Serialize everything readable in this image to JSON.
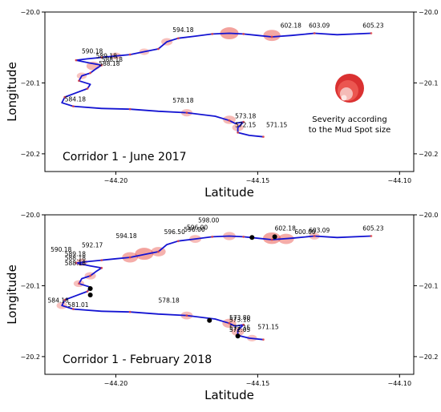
{
  "chart_data": [
    {
      "type": "line",
      "title": "",
      "annotation": "Corridor 1 -  June 2017",
      "xlabel": "Latitude",
      "ylabel": "Longitude",
      "xlim": [
        -44.225,
        -44.095
      ],
      "ylim": [
        -20.225,
        -20.0
      ],
      "xticks": [
        -44.2,
        -44.15,
        -44.1
      ],
      "xtick_labels": [
        "−44.20",
        "−44.15",
        "−44.10"
      ],
      "yticks": [
        -20.0,
        -20.1,
        -20.2
      ],
      "ytick_labels": [
        "−20.0",
        "−20.1",
        "−20.2"
      ],
      "grid": false,
      "legend": "Severity according to the Mud Spot size",
      "legend_lines": [
        "Severity according",
        "to the Mud Spot size"
      ],
      "route": [
        [
          -44.11,
          -20.03
        ],
        [
          -44.122,
          -20.032
        ],
        [
          -44.13,
          -20.03
        ],
        [
          -44.138,
          -20.033
        ],
        [
          -44.145,
          -20.035
        ],
        [
          -44.15,
          -20.033
        ],
        [
          -44.155,
          -20.031
        ],
        [
          -44.16,
          -20.03
        ],
        [
          -44.166,
          -20.031
        ],
        [
          -44.172,
          -20.034
        ],
        [
          -44.178,
          -20.037
        ],
        [
          -44.182,
          -20.042
        ],
        [
          -44.185,
          -20.052
        ],
        [
          -44.19,
          -20.056
        ],
        [
          -44.195,
          -20.06
        ],
        [
          -44.2,
          -20.062
        ],
        [
          -44.205,
          -20.064
        ],
        [
          -44.21,
          -20.066
        ],
        [
          -44.214,
          -20.068
        ],
        [
          -44.209,
          -20.072
        ],
        [
          -44.205,
          -20.075
        ],
        [
          -44.207,
          -20.08
        ],
        [
          -44.209,
          -20.086
        ],
        [
          -44.212,
          -20.09
        ],
        [
          -44.213,
          -20.097
        ],
        [
          -44.209,
          -20.102
        ],
        [
          -44.21,
          -20.108
        ],
        [
          -44.214,
          -20.114
        ],
        [
          -44.218,
          -20.12
        ],
        [
          -44.219,
          -20.128
        ],
        [
          -44.215,
          -20.133
        ],
        [
          -44.205,
          -20.136
        ],
        [
          -44.195,
          -20.137
        ],
        [
          -44.185,
          -20.14
        ],
        [
          -44.175,
          -20.142
        ],
        [
          -44.165,
          -20.147
        ],
        [
          -44.16,
          -20.153
        ],
        [
          -44.158,
          -20.157
        ],
        [
          -44.155,
          -20.155
        ],
        [
          -44.157,
          -20.163
        ],
        [
          -44.157,
          -20.17
        ],
        [
          -44.153,
          -20.174
        ],
        [
          -44.148,
          -20.176
        ]
      ],
      "points": [
        {
          "label": "605.23",
          "x": -44.113,
          "y": -20.022
        },
        {
          "label": "603.09",
          "x": -44.132,
          "y": -20.022
        },
        {
          "label": "602.18",
          "x": -44.142,
          "y": -20.022
        },
        {
          "label": "594.18",
          "x": -44.18,
          "y": -20.028
        },
        {
          "label": "590.18",
          "x": -44.212,
          "y": -20.058
        },
        {
          "label": "589.18",
          "x": -44.207,
          "y": -20.065
        },
        {
          "label": "588.18",
          "x": -44.205,
          "y": -20.07
        },
        {
          "label": "588.18",
          "x": -44.206,
          "y": -20.076
        },
        {
          "label": "584.18",
          "x": -44.218,
          "y": -20.126
        },
        {
          "label": "578.18",
          "x": -44.18,
          "y": -20.128
        },
        {
          "label": "573.18",
          "x": -44.158,
          "y": -20.15
        },
        {
          "label": "572.15",
          "x": -44.158,
          "y": -20.162
        },
        {
          "label": "571.15",
          "x": -44.147,
          "y": -20.162
        }
      ],
      "spots": [
        {
          "x": -44.16,
          "y": -20.03,
          "size": 1.0
        },
        {
          "x": -44.145,
          "y": -20.033,
          "size": 0.9
        },
        {
          "x": -44.208,
          "y": -20.076,
          "size": 0.6
        },
        {
          "x": -44.182,
          "y": -20.042,
          "size": 0.45
        },
        {
          "x": -44.175,
          "y": -20.142,
          "size": 0.45
        },
        {
          "x": -44.16,
          "y": -20.152,
          "size": 0.55
        },
        {
          "x": -44.157,
          "y": -20.163,
          "size": 0.45
        },
        {
          "x": -44.2,
          "y": -20.062,
          "size": 0.4
        },
        {
          "x": -44.212,
          "y": -20.09,
          "size": 0.35
        },
        {
          "x": -44.19,
          "y": -20.056,
          "size": 0.35
        }
      ],
      "events": []
    },
    {
      "type": "line",
      "title": "",
      "annotation": "Corridor 1 - February 2018",
      "xlabel": "Latitude",
      "ylabel": "Longitude",
      "xlim": [
        -44.225,
        -44.095
      ],
      "ylim": [
        -20.225,
        -20.0
      ],
      "xticks": [
        -44.2,
        -44.15,
        -44.1
      ],
      "xtick_labels": [
        "−44.20",
        "−44.15",
        "−44.10"
      ],
      "yticks": [
        -20.0,
        -20.1,
        -20.2
      ],
      "ytick_labels": [
        "−20.0",
        "−20.1",
        "−20.2"
      ],
      "grid": false,
      "route": [
        [
          -44.11,
          -20.03
        ],
        [
          -44.122,
          -20.032
        ],
        [
          -44.13,
          -20.03
        ],
        [
          -44.138,
          -20.033
        ],
        [
          -44.145,
          -20.035
        ],
        [
          -44.15,
          -20.033
        ],
        [
          -44.155,
          -20.031
        ],
        [
          -44.16,
          -20.03
        ],
        [
          -44.166,
          -20.031
        ],
        [
          -44.172,
          -20.034
        ],
        [
          -44.178,
          -20.037
        ],
        [
          -44.182,
          -20.042
        ],
        [
          -44.185,
          -20.052
        ],
        [
          -44.19,
          -20.056
        ],
        [
          -44.195,
          -20.06
        ],
        [
          -44.2,
          -20.062
        ],
        [
          -44.205,
          -20.064
        ],
        [
          -44.21,
          -20.066
        ],
        [
          -44.214,
          -20.068
        ],
        [
          -44.209,
          -20.072
        ],
        [
          -44.205,
          -20.075
        ],
        [
          -44.207,
          -20.08
        ],
        [
          -44.209,
          -20.086
        ],
        [
          -44.212,
          -20.09
        ],
        [
          -44.213,
          -20.097
        ],
        [
          -44.209,
          -20.102
        ],
        [
          -44.21,
          -20.108
        ],
        [
          -44.214,
          -20.114
        ],
        [
          -44.218,
          -20.12
        ],
        [
          -44.219,
          -20.128
        ],
        [
          -44.215,
          -20.133
        ],
        [
          -44.205,
          -20.136
        ],
        [
          -44.195,
          -20.137
        ],
        [
          -44.185,
          -20.14
        ],
        [
          -44.175,
          -20.142
        ],
        [
          -44.165,
          -20.147
        ],
        [
          -44.16,
          -20.153
        ],
        [
          -44.158,
          -20.157
        ],
        [
          -44.155,
          -20.155
        ],
        [
          -44.157,
          -20.163
        ],
        [
          -44.157,
          -20.17
        ],
        [
          -44.153,
          -20.174
        ],
        [
          -44.148,
          -20.176
        ]
      ],
      "points": [
        {
          "label": "605.23",
          "x": -44.113,
          "y": -20.022
        },
        {
          "label": "603.09",
          "x": -44.132,
          "y": -20.025
        },
        {
          "label": "600.00",
          "x": -44.137,
          "y": -20.027
        },
        {
          "label": "602.18",
          "x": -44.144,
          "y": -20.022
        },
        {
          "label": "598.00",
          "x": -44.171,
          "y": -20.011
        },
        {
          "label": "596.00",
          "x": -44.175,
          "y": -20.021
        },
        {
          "label": "596.00",
          "x": -44.176,
          "y": -20.024
        },
        {
          "label": "596.50",
          "x": -44.183,
          "y": -20.027
        },
        {
          "label": "594.18",
          "x": -44.2,
          "y": -20.033
        },
        {
          "label": "592.17",
          "x": -44.212,
          "y": -20.046
        },
        {
          "label": "590.18",
          "x": -44.223,
          "y": -20.052
        },
        {
          "label": "589.18",
          "x": -44.218,
          "y": -20.058
        },
        {
          "label": "588.18",
          "x": -44.218,
          "y": -20.064
        },
        {
          "label": "588.18",
          "x": -44.218,
          "y": -20.071
        },
        {
          "label": "584.18",
          "x": -44.224,
          "y": -20.124
        },
        {
          "label": "581.01",
          "x": -44.217,
          "y": -20.13
        },
        {
          "label": "578.18",
          "x": -44.185,
          "y": -20.124
        },
        {
          "label": "573.80",
          "x": -44.16,
          "y": -20.148
        },
        {
          "label": "573.18",
          "x": -44.16,
          "y": -20.151
        },
        {
          "label": "572.15",
          "x": -44.16,
          "y": -20.162
        },
        {
          "label": "572.05",
          "x": -44.16,
          "y": -20.165
        },
        {
          "label": "571.15",
          "x": -44.15,
          "y": -20.161
        }
      ],
      "spots": [
        {
          "x": -44.19,
          "y": -20.055,
          "size": 1.0
        },
        {
          "x": -44.195,
          "y": -20.06,
          "size": 0.8
        },
        {
          "x": -44.185,
          "y": -20.052,
          "size": 0.7
        },
        {
          "x": -44.145,
          "y": -20.033,
          "size": 0.95
        },
        {
          "x": -44.14,
          "y": -20.034,
          "size": 0.8
        },
        {
          "x": -44.16,
          "y": -20.03,
          "size": 0.55
        },
        {
          "x": -44.172,
          "y": -20.034,
          "size": 0.5
        },
        {
          "x": -44.212,
          "y": -20.067,
          "size": 0.45
        },
        {
          "x": -44.209,
          "y": -20.086,
          "size": 0.45
        },
        {
          "x": -44.213,
          "y": -20.097,
          "size": 0.4
        },
        {
          "x": -44.219,
          "y": -20.128,
          "size": 0.4
        },
        {
          "x": -44.175,
          "y": -20.142,
          "size": 0.5
        },
        {
          "x": -44.16,
          "y": -20.153,
          "size": 0.65
        },
        {
          "x": -44.157,
          "y": -20.165,
          "size": 0.55
        },
        {
          "x": -44.13,
          "y": -20.03,
          "size": 0.4
        },
        {
          "x": -44.152,
          "y": -20.174,
          "size": 0.35
        }
      ],
      "events": [
        {
          "x": -44.152,
          "y": -20.032
        },
        {
          "x": -44.144,
          "y": -20.031
        },
        {
          "x": -44.209,
          "y": -20.104
        },
        {
          "x": -44.209,
          "y": -20.113
        },
        {
          "x": -44.167,
          "y": -20.149
        },
        {
          "x": -44.157,
          "y": -20.171
        }
      ]
    }
  ],
  "colors": {
    "route": "#1414d2",
    "spot": "#e8453c",
    "spot_light": "#f3b9b4",
    "event": "#000000",
    "axis": "#000000"
  }
}
